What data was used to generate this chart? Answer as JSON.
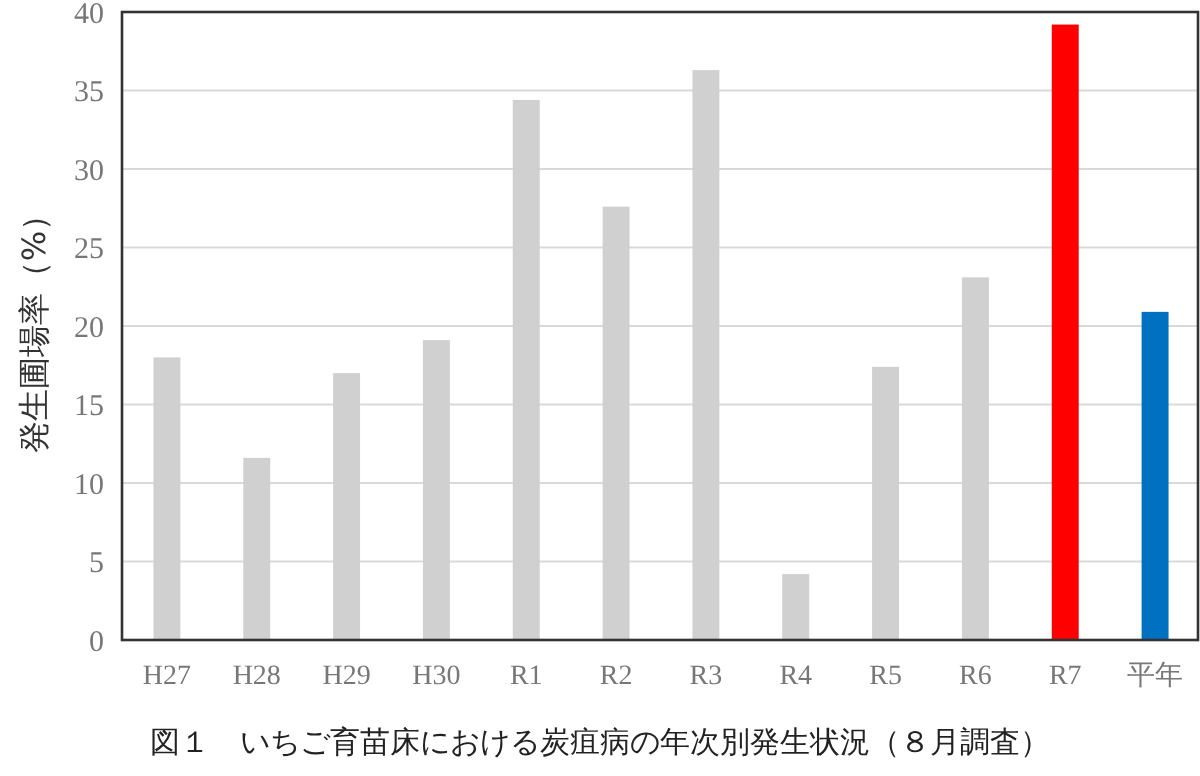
{
  "chart_data": {
    "type": "bar",
    "ylabel": "発生圃場率（%）",
    "categories": [
      "H27",
      "H28",
      "H29",
      "H30",
      "R1",
      "R2",
      "R3",
      "R4",
      "R5",
      "R6",
      "R7",
      "平年"
    ],
    "values": [
      18.0,
      11.6,
      17.0,
      19.1,
      34.4,
      27.6,
      36.3,
      4.2,
      17.4,
      23.1,
      39.2,
      20.9
    ],
    "colors": [
      "#d0d0d0",
      "#d0d0d0",
      "#d0d0d0",
      "#d0d0d0",
      "#d0d0d0",
      "#d0d0d0",
      "#d0d0d0",
      "#d0d0d0",
      "#d0d0d0",
      "#d0d0d0",
      "#ff0000",
      "#0070c0"
    ],
    "ylim": [
      0,
      40
    ],
    "yticks": [
      0,
      5,
      10,
      15,
      20,
      25,
      30,
      35,
      40
    ],
    "grid": "y",
    "annotations": [
      "図１　いちご育苗床における炭疽病の年次別発生状況（８月調査）"
    ]
  }
}
